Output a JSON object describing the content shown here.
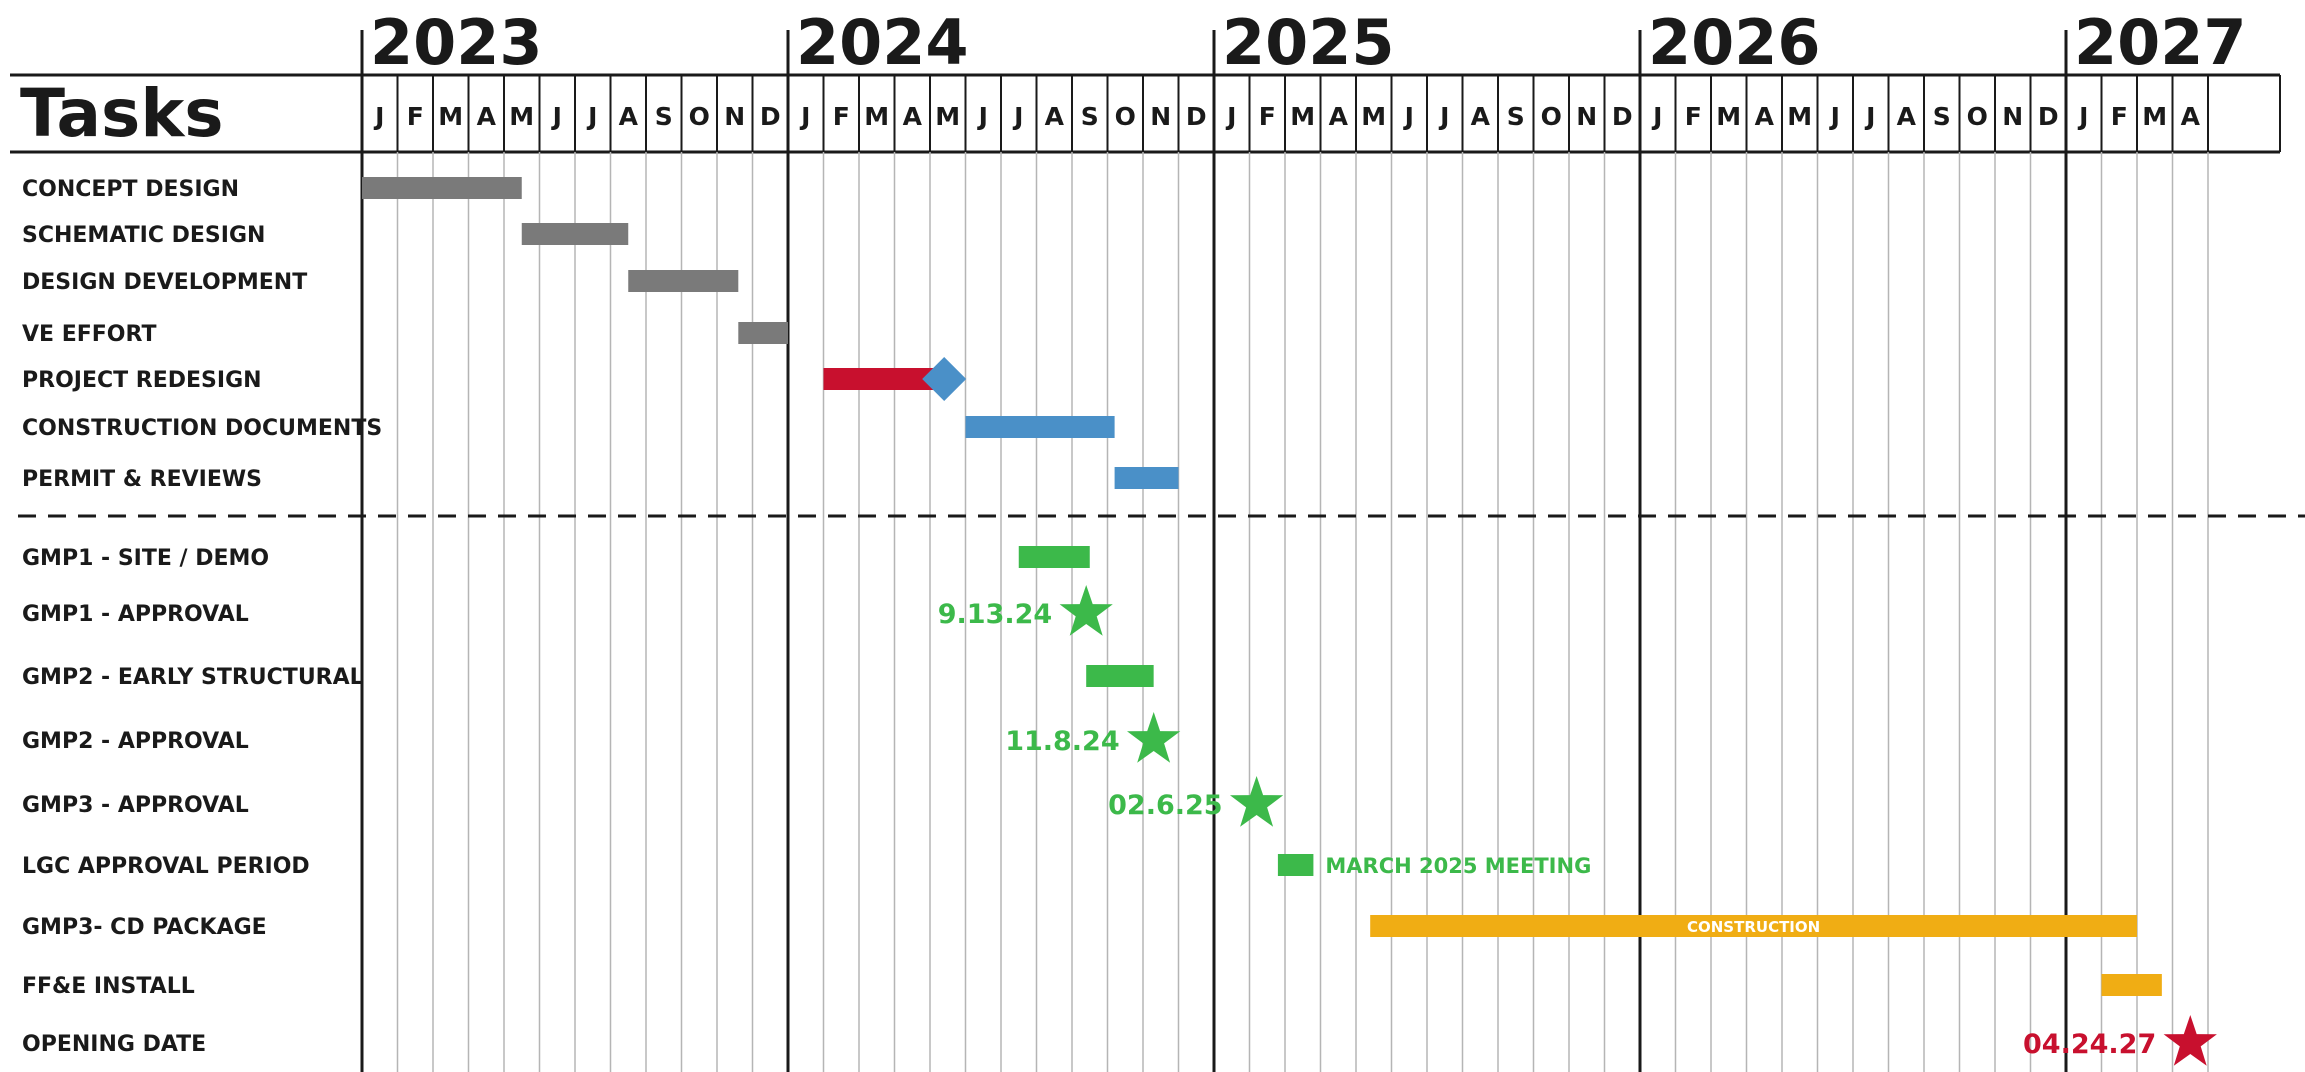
{
  "chart_data": {
    "type": "gantt",
    "tasks_header": "Tasks",
    "years": [
      "2023",
      "2024",
      "2025",
      "2026",
      "2027"
    ],
    "months": [
      "J",
      "F",
      "M",
      "A",
      "M",
      "J",
      "J",
      "A",
      "S",
      "O",
      "N",
      "D"
    ],
    "months_shown": 52,
    "colors": {
      "gray": "#7a7a7a",
      "red": "#c8102e",
      "blue": "#4a90c8",
      "green": "#3cb94a",
      "orange": "#f0ad14",
      "label": "#1a1a1a",
      "label_highlight": "#c8102e"
    },
    "tasks": [
      {
        "label": "CONCEPT DESIGN",
        "color": "gray",
        "bars": [
          {
            "start": 0,
            "end": 4.5
          }
        ]
      },
      {
        "label": "SCHEMATIC DESIGN",
        "color": "gray",
        "bars": [
          {
            "start": 4.5,
            "end": 7.5
          }
        ]
      },
      {
        "label": "DESIGN DEVELOPMENT",
        "color": "gray",
        "bars": [
          {
            "start": 7.5,
            "end": 10.6
          }
        ]
      },
      {
        "label": "VE EFFORT",
        "color": "gray",
        "bars": [
          {
            "start": 10.6,
            "end": 12
          }
        ]
      },
      {
        "label": "PROJECT REDESIGN",
        "color": "red",
        "highlight": true,
        "bars": [
          {
            "start": 13,
            "end": 16.4
          }
        ],
        "diamond": 16.4
      },
      {
        "label": "CONSTRUCTION DOCUMENTS",
        "color": "blue",
        "bars": [
          {
            "start": 17,
            "end": 21.2
          }
        ]
      },
      {
        "label": "PERMIT & REVIEWS",
        "color": "blue",
        "bars": [
          {
            "start": 21.2,
            "end": 23
          }
        ]
      },
      {
        "label": "GMP1 - SITE / DEMO",
        "color": "green",
        "bars": [
          {
            "start": 18.5,
            "end": 20.5
          }
        ]
      },
      {
        "label": "GMP1 - APPROVAL",
        "color": "green",
        "milestone": {
          "pos": 20.4,
          "label": "9.13.24"
        }
      },
      {
        "label": "GMP2 - EARLY STRUCTURAL",
        "color": "green",
        "bars": [
          {
            "start": 20.4,
            "end": 22.3
          }
        ]
      },
      {
        "label": "GMP2 - APPROVAL",
        "color": "green",
        "milestone": {
          "pos": 22.3,
          "label": "11.8.24"
        }
      },
      {
        "label": "GMP3 - APPROVAL",
        "color": "green",
        "milestone": {
          "pos": 25.2,
          "label": "02.6.25"
        }
      },
      {
        "label": "LGC APPROVAL PERIOD",
        "color": "green",
        "bars": [
          {
            "start": 25.8,
            "end": 26.8
          }
        ],
        "annotation": "MARCH 2025 MEETING"
      },
      {
        "label": "GMP3- CD PACKAGE",
        "color": "orange",
        "bars": [
          {
            "start": 28.4,
            "end": 50.0,
            "text": "CONSTRUCTION"
          }
        ]
      },
      {
        "label": "FF&E INSTALL",
        "color": "orange",
        "bars": [
          {
            "start": 49.0,
            "end": 50.7
          }
        ]
      },
      {
        "label": "OPENING DATE",
        "color": "red",
        "milestone": {
          "pos": 51.5,
          "label": "04.24.27"
        }
      }
    ],
    "separator_after_task": 7
  }
}
